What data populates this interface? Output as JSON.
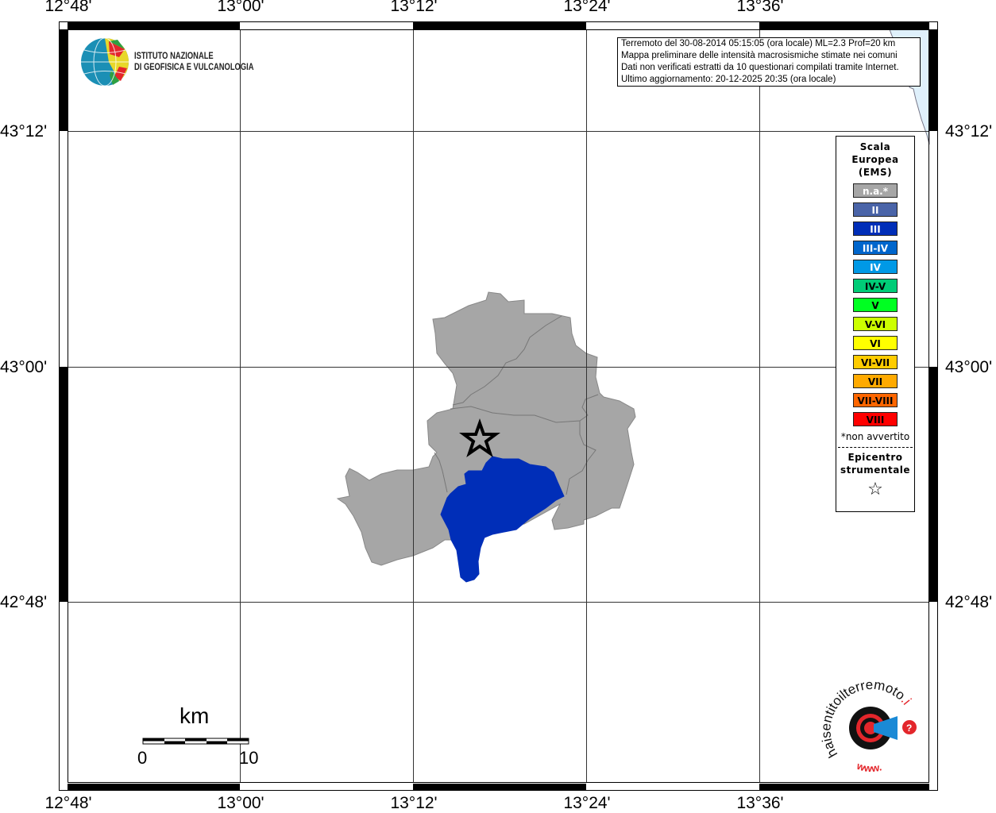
{
  "axes": {
    "lon_labels": [
      "12°48'",
      "13°00'",
      "13°12'",
      "13°24'",
      "13°36'"
    ],
    "lat_labels": [
      "43°12'",
      "43°00'",
      "42°48'"
    ]
  },
  "logo_ingv": {
    "line1": "ISTITUTO NAZIONALE",
    "line2": "DI GEOFISICA E VULCANOLOGIA"
  },
  "info": {
    "lines": [
      "Terremoto del 30-08-2014 05:15:05 (ora locale) ML=2.3 Prof=20 km",
      "Mappa preliminare delle intensità macrosismiche stimate nei comuni",
      "Dati non verificati estratti da 10 questionari compilati tramite Internet.",
      "Ultimo aggiornamento: 20-12-2025 20:35 (ora locale)"
    ]
  },
  "legend": {
    "title": [
      "Scala",
      "Europea",
      "(EMS)"
    ],
    "items": [
      {
        "label": "n.a.*",
        "color": "#a6a6a6",
        "text": "#ffffff"
      },
      {
        "label": "II",
        "color": "#4a64a8",
        "text": "#ffffff"
      },
      {
        "label": "III",
        "color": "#002eb8",
        "text": "#ffffff"
      },
      {
        "label": "III-IV",
        "color": "#0066cc",
        "text": "#ffffff"
      },
      {
        "label": "IV",
        "color": "#0099e6",
        "text": "#ffffff"
      },
      {
        "label": "IV-V",
        "color": "#00cc77",
        "text": "#000000"
      },
      {
        "label": "V",
        "color": "#00ff22",
        "text": "#000000"
      },
      {
        "label": "V-VI",
        "color": "#ccff00",
        "text": "#000000"
      },
      {
        "label": "VI",
        "color": "#ffff00",
        "text": "#000000"
      },
      {
        "label": "VI-VII",
        "color": "#ffcc00",
        "text": "#000000"
      },
      {
        "label": "VII",
        "color": "#ffaa00",
        "text": "#000000"
      },
      {
        "label": "VII-VIII",
        "color": "#ff6600",
        "text": "#000000"
      },
      {
        "label": "VIII",
        "color": "#ff0000",
        "text": "#000000"
      }
    ],
    "note": "*non avvertito",
    "epicenter": [
      "Epicentro",
      "strumentale"
    ]
  },
  "scale_bar": {
    "unit": "km",
    "min": "0",
    "max": "10"
  },
  "logo_hsit": {
    "text": "haisentitoilterremoto.it",
    "prefix": "www."
  },
  "map": {
    "felt_color": "#002eb8",
    "na_color": "#a6a6a6",
    "sea_color": "#dff0fb",
    "felt_intensity": "III"
  }
}
